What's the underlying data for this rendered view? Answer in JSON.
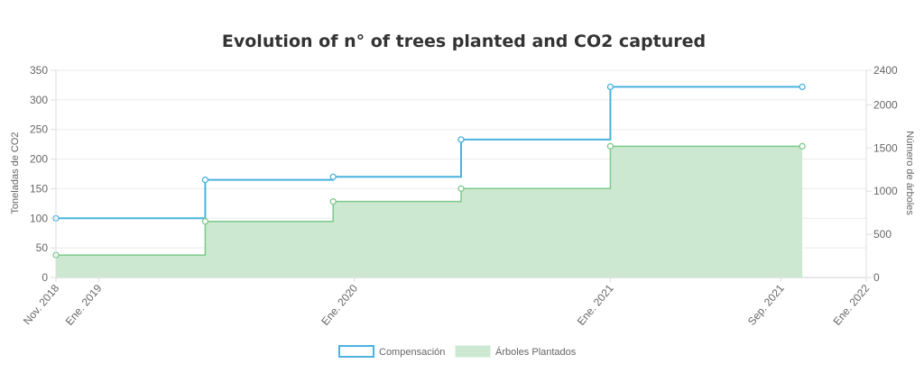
{
  "chart_data": {
    "type": "line",
    "title": "Evolution of n° of trees planted and CO2 captured",
    "x_axis": {
      "ticks": [
        "Nov. 2018",
        "Ene. 2019",
        "Ene. 2020",
        "Ene. 2021",
        "Sep. 2021",
        "Ene. 2022"
      ],
      "range": [
        "2018-11",
        "2022-01"
      ]
    },
    "y_left": {
      "label": "Toneladas de CO2",
      "min": 0,
      "max": 350,
      "step": 50
    },
    "y_right": {
      "label": "Número de árboles",
      "min": 0,
      "max": 2400,
      "step": 500
    },
    "grid": true,
    "legend_position": "bottom",
    "series": [
      {
        "name": "Compensación",
        "axis": "left",
        "style": "stepped-line",
        "color": "#4ab3de",
        "points": [
          {
            "x": "2018-11",
            "y": 100
          },
          {
            "x": "2019-06",
            "y": 165
          },
          {
            "x": "2019-12",
            "y": 170
          },
          {
            "x": "2020-06",
            "y": 233
          },
          {
            "x": "2021-01",
            "y": 322
          },
          {
            "x": "2021-10",
            "y": 322
          }
        ]
      },
      {
        "name": "Árboles Plantados",
        "axis": "right",
        "style": "stepped-area",
        "color": "#7cc98c",
        "fill": "#cde8d0",
        "points": [
          {
            "x": "2018-11",
            "y": 260
          },
          {
            "x": "2019-06",
            "y": 650
          },
          {
            "x": "2019-12",
            "y": 880
          },
          {
            "x": "2020-06",
            "y": 1030
          },
          {
            "x": "2021-01",
            "y": 1520
          },
          {
            "x": "2021-10",
            "y": 1520
          }
        ]
      }
    ]
  }
}
